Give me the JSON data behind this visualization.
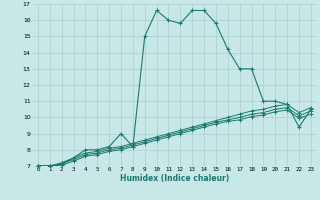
{
  "xlabel": "Humidex (Indice chaleur)",
  "x_values": [
    0,
    1,
    2,
    3,
    4,
    5,
    6,
    7,
    8,
    9,
    10,
    11,
    12,
    13,
    14,
    15,
    16,
    17,
    18,
    19,
    20,
    21,
    22,
    23
  ],
  "line1_y": [
    7.0,
    7.0,
    7.1,
    7.5,
    8.0,
    8.0,
    8.2,
    9.0,
    8.2,
    15.0,
    16.6,
    16.0,
    15.8,
    16.6,
    16.6,
    15.8,
    14.2,
    13.0,
    13.0,
    11.0,
    11.0,
    10.8,
    9.4,
    10.5
  ],
  "line2_y": [
    7.0,
    7.0,
    7.2,
    7.5,
    7.8,
    7.9,
    8.1,
    8.2,
    8.4,
    8.6,
    8.8,
    9.0,
    9.2,
    9.4,
    9.6,
    9.8,
    10.0,
    10.2,
    10.4,
    10.5,
    10.7,
    10.8,
    10.3,
    10.6
  ],
  "line3_y": [
    7.0,
    7.0,
    7.15,
    7.4,
    7.7,
    7.8,
    8.0,
    8.1,
    8.3,
    8.5,
    8.7,
    8.9,
    9.1,
    9.3,
    9.5,
    9.7,
    9.85,
    10.0,
    10.2,
    10.3,
    10.5,
    10.6,
    10.1,
    10.4
  ],
  "line4_y": [
    7.0,
    7.0,
    7.05,
    7.3,
    7.6,
    7.7,
    7.9,
    8.0,
    8.2,
    8.4,
    8.6,
    8.8,
    9.0,
    9.2,
    9.4,
    9.6,
    9.75,
    9.85,
    10.05,
    10.15,
    10.35,
    10.45,
    9.95,
    10.2
  ],
  "line_color": "#1a7a6e",
  "bg_color": "#c8e8e8",
  "grid_color": "#aacece",
  "ylim": [
    7,
    17
  ],
  "yticks": [
    7,
    8,
    9,
    10,
    11,
    12,
    13,
    14,
    15,
    16,
    17
  ],
  "xticks": [
    0,
    1,
    2,
    3,
    4,
    5,
    6,
    7,
    8,
    9,
    10,
    11,
    12,
    13,
    14,
    15,
    16,
    17,
    18,
    19,
    20,
    21,
    22,
    23
  ]
}
